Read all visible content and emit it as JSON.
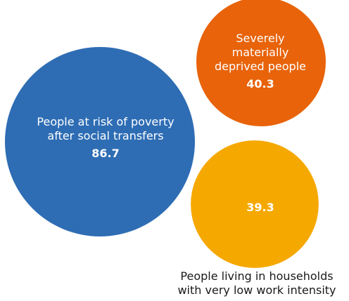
{
  "chart_data": {
    "type": "bubble",
    "title": "",
    "bubbles": [
      {
        "label": [
          "People at risk of poverty",
          "after social transfers"
        ],
        "value": 86.7,
        "color": "#2E6DB4",
        "value_color": "#ffffff"
      },
      {
        "label": [
          "Severely",
          "materially",
          "deprived people"
        ],
        "value": 40.3,
        "color": "#E8630A",
        "value_color": "#ffffff"
      },
      {
        "label": [
          "People living in households",
          "with very low work intensity"
        ],
        "value": 39.3,
        "color": "#F5A800",
        "value_color": "#ffffff"
      }
    ],
    "legend": "none"
  }
}
